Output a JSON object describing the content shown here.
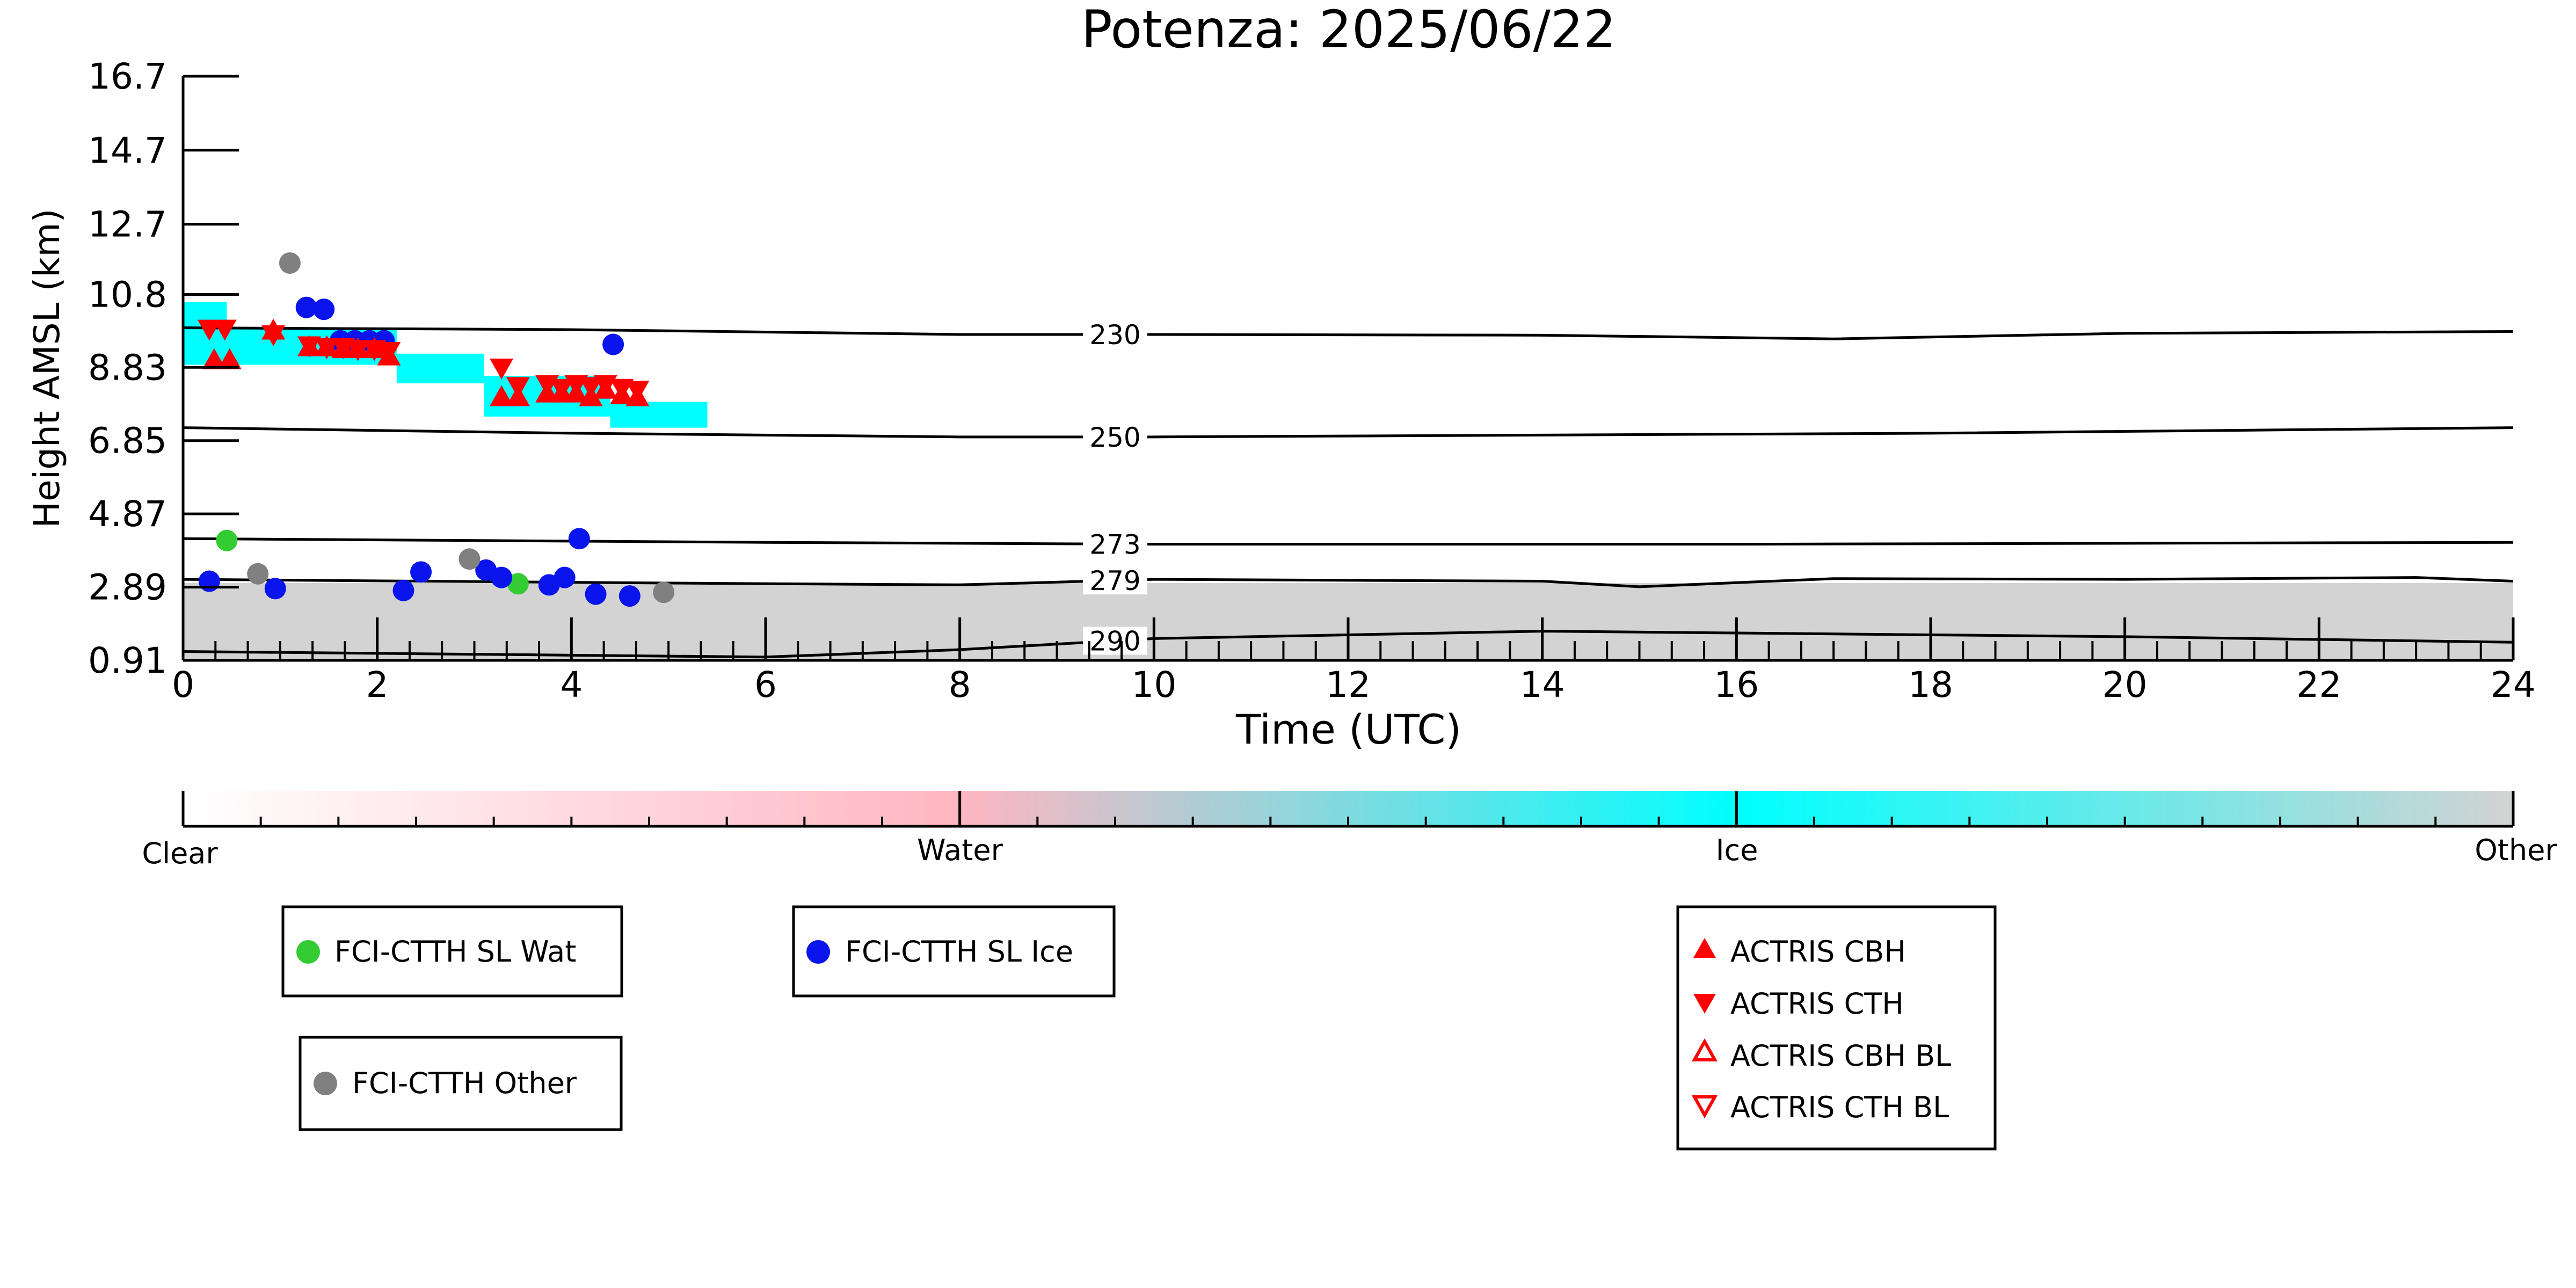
{
  "chart_data": {
    "type": "scatter",
    "title": "Potenza: 2025/06/22",
    "xlabel": "Time (UTC)",
    "ylabel": "Height AMSL (km)",
    "xlim": [
      0,
      24
    ],
    "ylim": [
      0.91,
      16.7
    ],
    "x_ticks": [
      "0",
      "2",
      "4",
      "6",
      "8",
      "10",
      "12",
      "14",
      "16",
      "18",
      "20",
      "22",
      "24"
    ],
    "y_ticks": [
      "0.91",
      "2.89",
      "4.87",
      "6.85",
      "8.83",
      "10.8",
      "12.7",
      "14.7",
      "16.7"
    ],
    "isotherms": [
      {
        "label": "230",
        "points": [
          [
            0,
            9.9
          ],
          [
            4,
            9.85
          ],
          [
            8,
            9.72
          ],
          [
            10,
            9.72
          ],
          [
            14,
            9.7
          ],
          [
            17,
            9.6
          ],
          [
            20,
            9.75
          ],
          [
            24,
            9.8
          ]
        ]
      },
      {
        "label": "250",
        "points": [
          [
            0,
            7.2
          ],
          [
            4,
            7.05
          ],
          [
            8,
            6.95
          ],
          [
            10,
            6.95
          ],
          [
            14,
            7.0
          ],
          [
            18,
            7.05
          ],
          [
            24,
            7.2
          ]
        ]
      },
      {
        "label": "273",
        "points": [
          [
            0,
            4.2
          ],
          [
            6,
            4.1
          ],
          [
            10,
            4.05
          ],
          [
            16,
            4.05
          ],
          [
            24,
            4.1
          ]
        ]
      },
      {
        "label": "279",
        "points": [
          [
            0,
            3.1
          ],
          [
            5,
            3.0
          ],
          [
            8,
            2.95
          ],
          [
            10,
            3.1
          ],
          [
            14,
            3.05
          ],
          [
            15,
            2.9
          ],
          [
            17,
            3.12
          ],
          [
            20,
            3.1
          ],
          [
            23,
            3.15
          ],
          [
            24,
            3.05
          ]
        ]
      },
      {
        "label": "290",
        "points": [
          [
            0,
            1.15
          ],
          [
            4,
            1.05
          ],
          [
            6,
            1.0
          ],
          [
            8,
            1.2
          ],
          [
            10,
            1.5
          ],
          [
            14,
            1.7
          ],
          [
            16,
            1.65
          ],
          [
            20,
            1.55
          ],
          [
            24,
            1.4
          ]
        ]
      }
    ],
    "classification_fill": {
      "other_region": {
        "x": [
          0,
          24
        ],
        "y_low": 0.91,
        "y_high": 3.0,
        "color": "#d3d3d3"
      },
      "ice_cloud": [
        {
          "x": [
            0.0,
            0.45
          ],
          "y": [
            8.9,
            10.6
          ]
        },
        {
          "x": [
            0.45,
            2.2
          ],
          "y": [
            8.9,
            9.9
          ]
        },
        {
          "x": [
            2.2,
            3.1
          ],
          "y": [
            8.4,
            9.2
          ]
        },
        {
          "x": [
            3.1,
            4.4
          ],
          "y": [
            7.5,
            8.6
          ]
        },
        {
          "x": [
            4.4,
            5.4
          ],
          "y": [
            7.2,
            7.9
          ]
        }
      ]
    },
    "series": [
      {
        "name": "FCI-CTTH SL Wat",
        "marker": "circle",
        "color": "#33cc33",
        "points": [
          [
            0.45,
            4.15
          ],
          [
            3.45,
            2.98
          ]
        ]
      },
      {
        "name": "FCI-CTTH SL Ice",
        "marker": "circle",
        "color": "#0a14ec",
        "points": [
          [
            0.27,
            3.05
          ],
          [
            0.95,
            2.85
          ],
          [
            1.27,
            10.45
          ],
          [
            1.45,
            10.4
          ],
          [
            1.62,
            9.55
          ],
          [
            1.77,
            9.55
          ],
          [
            1.92,
            9.55
          ],
          [
            2.07,
            9.55
          ],
          [
            2.27,
            2.8
          ],
          [
            2.45,
            3.3
          ],
          [
            3.12,
            3.35
          ],
          [
            3.28,
            3.15
          ],
          [
            3.77,
            2.95
          ],
          [
            3.93,
            3.15
          ],
          [
            4.08,
            4.2
          ],
          [
            4.25,
            2.7
          ],
          [
            4.43,
            9.45
          ],
          [
            4.6,
            2.65
          ]
        ]
      },
      {
        "name": "FCI-CTTH Other",
        "marker": "circle",
        "color": "#808080",
        "points": [
          [
            0.77,
            3.25
          ],
          [
            1.1,
            11.65
          ],
          [
            2.95,
            3.65
          ],
          [
            4.95,
            2.75
          ]
        ]
      },
      {
        "name": "ACTRIS CBH",
        "marker": "triangle-up",
        "color": "#ff0000",
        "points": [
          [
            0.32,
            9.0
          ],
          [
            0.48,
            9.0
          ],
          [
            0.93,
            9.8
          ],
          [
            1.3,
            9.35
          ],
          [
            1.48,
            9.35
          ],
          [
            1.65,
            9.3
          ],
          [
            1.8,
            9.3
          ],
          [
            1.97,
            9.3
          ],
          [
            2.12,
            9.1
          ],
          [
            3.28,
            8.0
          ],
          [
            3.45,
            8.0
          ],
          [
            3.75,
            8.1
          ],
          [
            3.9,
            8.1
          ],
          [
            4.05,
            8.1
          ],
          [
            4.2,
            8.0
          ],
          [
            4.35,
            8.2
          ],
          [
            4.52,
            8.05
          ],
          [
            4.68,
            8.0
          ]
        ]
      },
      {
        "name": "ACTRIS CTH",
        "marker": "triangle-down",
        "color": "#ff0000",
        "points": [
          [
            0.27,
            9.9
          ],
          [
            0.43,
            9.9
          ],
          [
            0.93,
            9.75
          ],
          [
            1.3,
            9.45
          ],
          [
            1.48,
            9.4
          ],
          [
            1.65,
            9.4
          ],
          [
            1.8,
            9.35
          ],
          [
            1.97,
            9.35
          ],
          [
            2.12,
            9.3
          ],
          [
            3.28,
            8.85
          ],
          [
            3.45,
            8.35
          ],
          [
            3.75,
            8.4
          ],
          [
            3.9,
            8.3
          ],
          [
            4.05,
            8.4
          ],
          [
            4.2,
            8.35
          ],
          [
            4.35,
            8.4
          ],
          [
            4.52,
            8.3
          ],
          [
            4.68,
            8.25
          ]
        ]
      },
      {
        "name": "ACTRIS CBH BL",
        "marker": "triangle-up-open",
        "color": "#ff0000",
        "points": []
      },
      {
        "name": "ACTRIS CTH BL",
        "marker": "triangle-down-open",
        "color": "#ff0000",
        "points": []
      }
    ],
    "colorbar": {
      "labels": [
        "Clear",
        "Water",
        "Ice",
        "Other"
      ],
      "colors": [
        "#ffffff",
        "#ffb6c1",
        "#00ffff",
        "#d3d3d3"
      ]
    },
    "legends": [
      {
        "id": "wat",
        "entries": [
          "FCI-CTTH SL Wat"
        ]
      },
      {
        "id": "ice",
        "entries": [
          "FCI-CTTH SL Ice"
        ]
      },
      {
        "id": "other",
        "entries": [
          "FCI-CTTH Other"
        ]
      },
      {
        "id": "actris",
        "entries": [
          "ACTRIS CBH",
          "ACTRIS CTH",
          "ACTRIS CBH BL",
          "ACTRIS CTH BL"
        ]
      }
    ]
  }
}
